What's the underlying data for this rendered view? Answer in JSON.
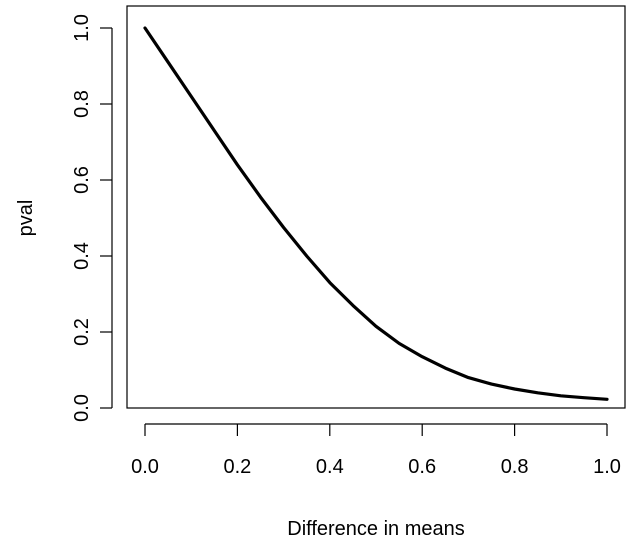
{
  "chart_data": {
    "type": "line",
    "title": "",
    "xlabel": "Difference in means",
    "ylabel": "pval",
    "xlim": [
      0.0,
      1.0
    ],
    "ylim": [
      0.0,
      1.0
    ],
    "x_ticks": [
      "0.0",
      "0.2",
      "0.4",
      "0.6",
      "0.8",
      "1.0"
    ],
    "y_ticks": [
      "0.0",
      "0.2",
      "0.4",
      "0.6",
      "0.8",
      "1.0"
    ],
    "grid": false,
    "legend": "none",
    "line_color": "#000000",
    "series": [
      {
        "x": [
          0.0,
          0.05,
          0.1,
          0.15,
          0.2,
          0.25,
          0.3,
          0.35,
          0.4,
          0.45,
          0.5,
          0.55,
          0.6,
          0.65,
          0.7,
          0.75,
          0.8,
          0.85,
          0.9,
          0.95,
          1.0
        ],
        "values": [
          1.0,
          0.91,
          0.82,
          0.73,
          0.64,
          0.555,
          0.475,
          0.4,
          0.33,
          0.27,
          0.215,
          0.17,
          0.135,
          0.105,
          0.08,
          0.063,
          0.05,
          0.04,
          0.032,
          0.027,
          0.023
        ]
      }
    ]
  }
}
